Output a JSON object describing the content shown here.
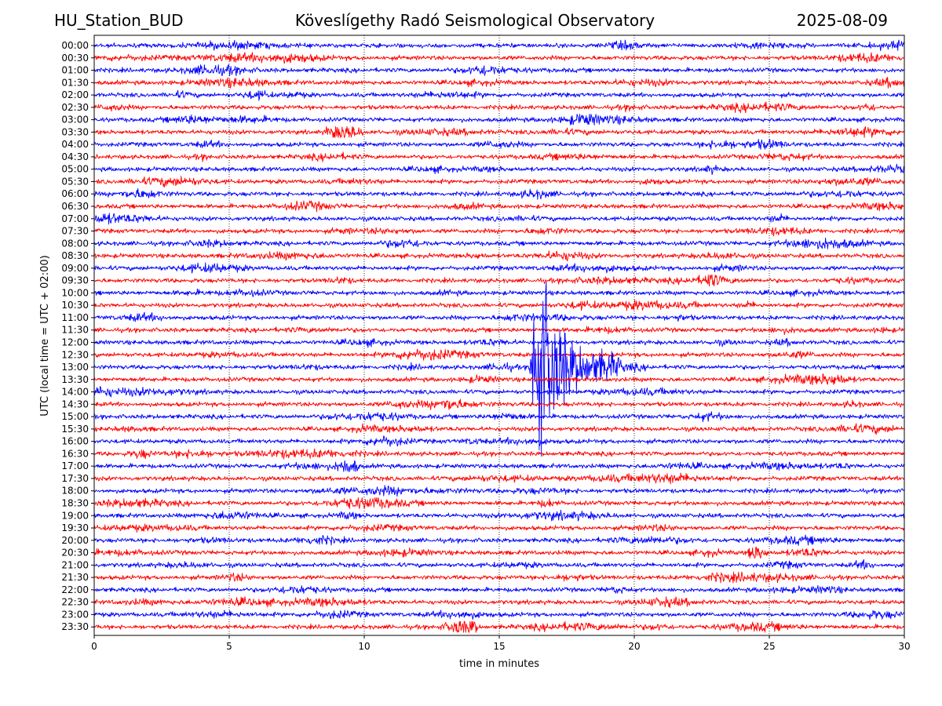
{
  "header": {
    "station": "HU_Station_BUD",
    "observatory": "Köveslígethy Radó Seismological Observatory",
    "date": "2025-08-09"
  },
  "chart_data": {
    "type": "line",
    "title": "Köveslígethy Radó Seismological Observatory",
    "xlabel": "time in minutes",
    "ylabel": "UTC (local time = UTC + 02:00)",
    "xlim": [
      0,
      30
    ],
    "xticks": [
      0,
      5,
      10,
      15,
      20,
      25,
      30
    ],
    "vertical_grid": "dotted",
    "colors": {
      "even_row": "#0000ff",
      "odd_row": "#ff0000"
    },
    "rows": [
      "00:00",
      "00:30",
      "01:00",
      "01:30",
      "02:00",
      "02:30",
      "03:00",
      "03:30",
      "04:00",
      "04:30",
      "05:00",
      "05:30",
      "06:00",
      "06:30",
      "07:00",
      "07:30",
      "08:00",
      "08:30",
      "09:00",
      "09:30",
      "10:00",
      "10:30",
      "11:00",
      "11:30",
      "12:00",
      "12:30",
      "13:00",
      "13:30",
      "14:00",
      "14:30",
      "15:00",
      "15:30",
      "16:00",
      "16:30",
      "17:00",
      "17:30",
      "18:00",
      "18:30",
      "19:00",
      "19:30",
      "20:00",
      "20:30",
      "21:00",
      "21:30",
      "22:00",
      "22:30",
      "23:00",
      "23:30"
    ],
    "events": [
      {
        "row": "13:00",
        "start_min": 16.1,
        "end_min": 19.5,
        "peak_min": 16.4,
        "description": "large earthquake waveform"
      },
      {
        "row": "09:30",
        "start_min": 22.6,
        "end_min": 23.4,
        "peak_min": 22.7
      },
      {
        "row": "17:00",
        "start_min": 8.9,
        "end_min": 9.8,
        "peak_min": 9.4
      },
      {
        "row": "20:30",
        "start_min": 24.2,
        "end_min": 25.0,
        "peak_min": 24.5
      },
      {
        "row": "23:30",
        "start_min": 12.5,
        "end_min": 14.2,
        "peak_min": 13.8
      },
      {
        "row": "03:30",
        "start_min": 8.5,
        "end_min": 10.0,
        "peak_min": 9.2
      }
    ]
  }
}
